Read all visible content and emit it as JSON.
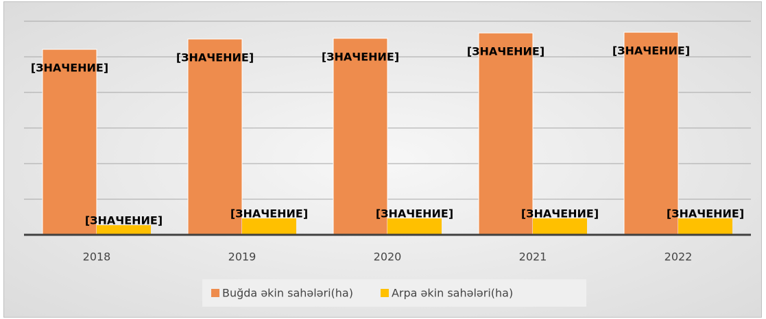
{
  "chart_data": {
    "type": "bar",
    "categories": [
      "2018",
      "2019",
      "2020",
      "2021",
      "2022"
    ],
    "series": [
      {
        "name": "Buğda əkin sahələri(ha)",
        "color": "#ee8c4d",
        "values": [
          5.21,
          5.5,
          5.52,
          5.67,
          5.69
        ],
        "value_labels": [
          "[ЗНАЧЕНИЕ]",
          "[ЗНАЧЕНИЕ]",
          "[ЗНАЧЕНИЕ]",
          "[ЗНАЧЕНИЕ]",
          "[ЗНАЧЕНИЕ]"
        ]
      },
      {
        "name": "Arpa əkin sahələri(ha)",
        "color": "#ffc000",
        "values": [
          0.27,
          0.46,
          0.46,
          0.46,
          0.46
        ],
        "value_labels": [
          "[ЗНАЧЕНИЕ]",
          "[ЗНАЧЕНИЕ]",
          "[ЗНАЧЕНИЕ]",
          "[ЗНАЧЕНИЕ]",
          "[ЗНАЧЕНИЕ]"
        ]
      }
    ],
    "ylim": [
      0,
      6
    ],
    "yticks": [
      0,
      1,
      2,
      3,
      4,
      5,
      6
    ],
    "grid": true,
    "legend": "bottom"
  }
}
